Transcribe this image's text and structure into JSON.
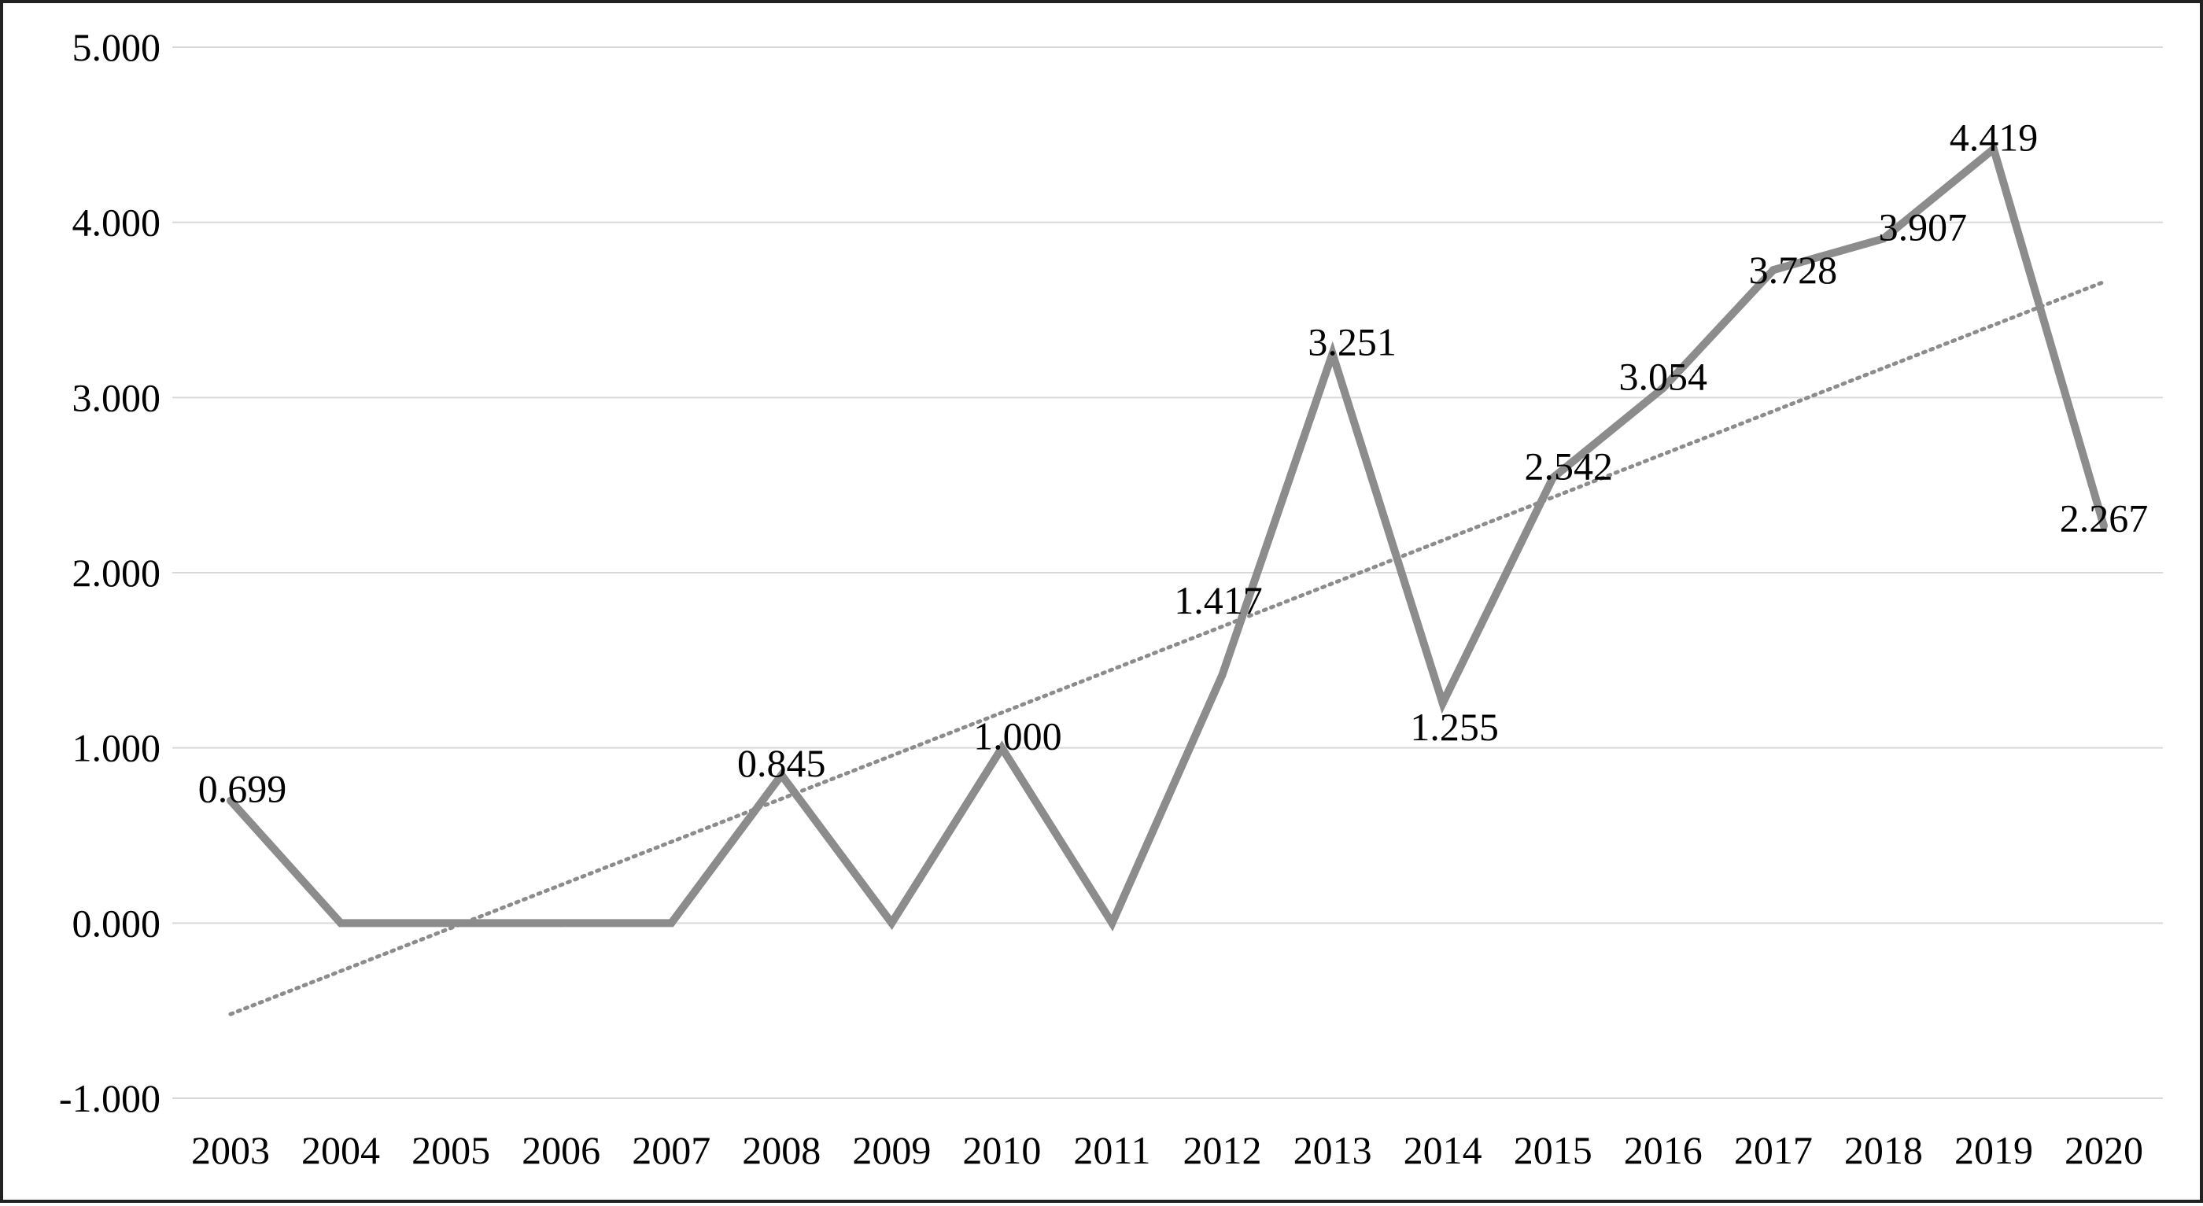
{
  "chart_data": {
    "type": "line",
    "categories": [
      "2003",
      "2004",
      "2005",
      "2006",
      "2007",
      "2008",
      "2009",
      "2010",
      "2011",
      "2012",
      "2013",
      "2014",
      "2015",
      "2016",
      "2017",
      "2018",
      "2019",
      "2020"
    ],
    "series": [
      {
        "values": [
          0.699,
          0,
          0,
          0,
          0,
          0.845,
          0,
          1.0,
          0,
          1.417,
          3.251,
          1.255,
          2.542,
          3.054,
          3.728,
          3.907,
          4.419,
          2.267
        ],
        "color": "#8c8c8c",
        "data_labels": [
          "0.699",
          "",
          "",
          "",
          "",
          "0.845",
          "",
          "1.000",
          "",
          "1.417",
          "3.251",
          "1.255",
          "2.542",
          "3.054",
          "3.728",
          "3.907",
          "4.419",
          "2.267"
        ]
      }
    ],
    "trendline": {
      "type": "linear",
      "style": "dotted",
      "color": "#8c8c8c",
      "start": -0.52,
      "end": 3.66
    },
    "y_ticks": [
      "-1.000",
      "0.000",
      "1.000",
      "2.000",
      "3.000",
      "4.000",
      "5.000"
    ],
    "ylim": [
      -1,
      5
    ],
    "grid": true,
    "gridline_color": "#d9d9d9",
    "title": "",
    "xlabel": "",
    "ylabel": ""
  }
}
